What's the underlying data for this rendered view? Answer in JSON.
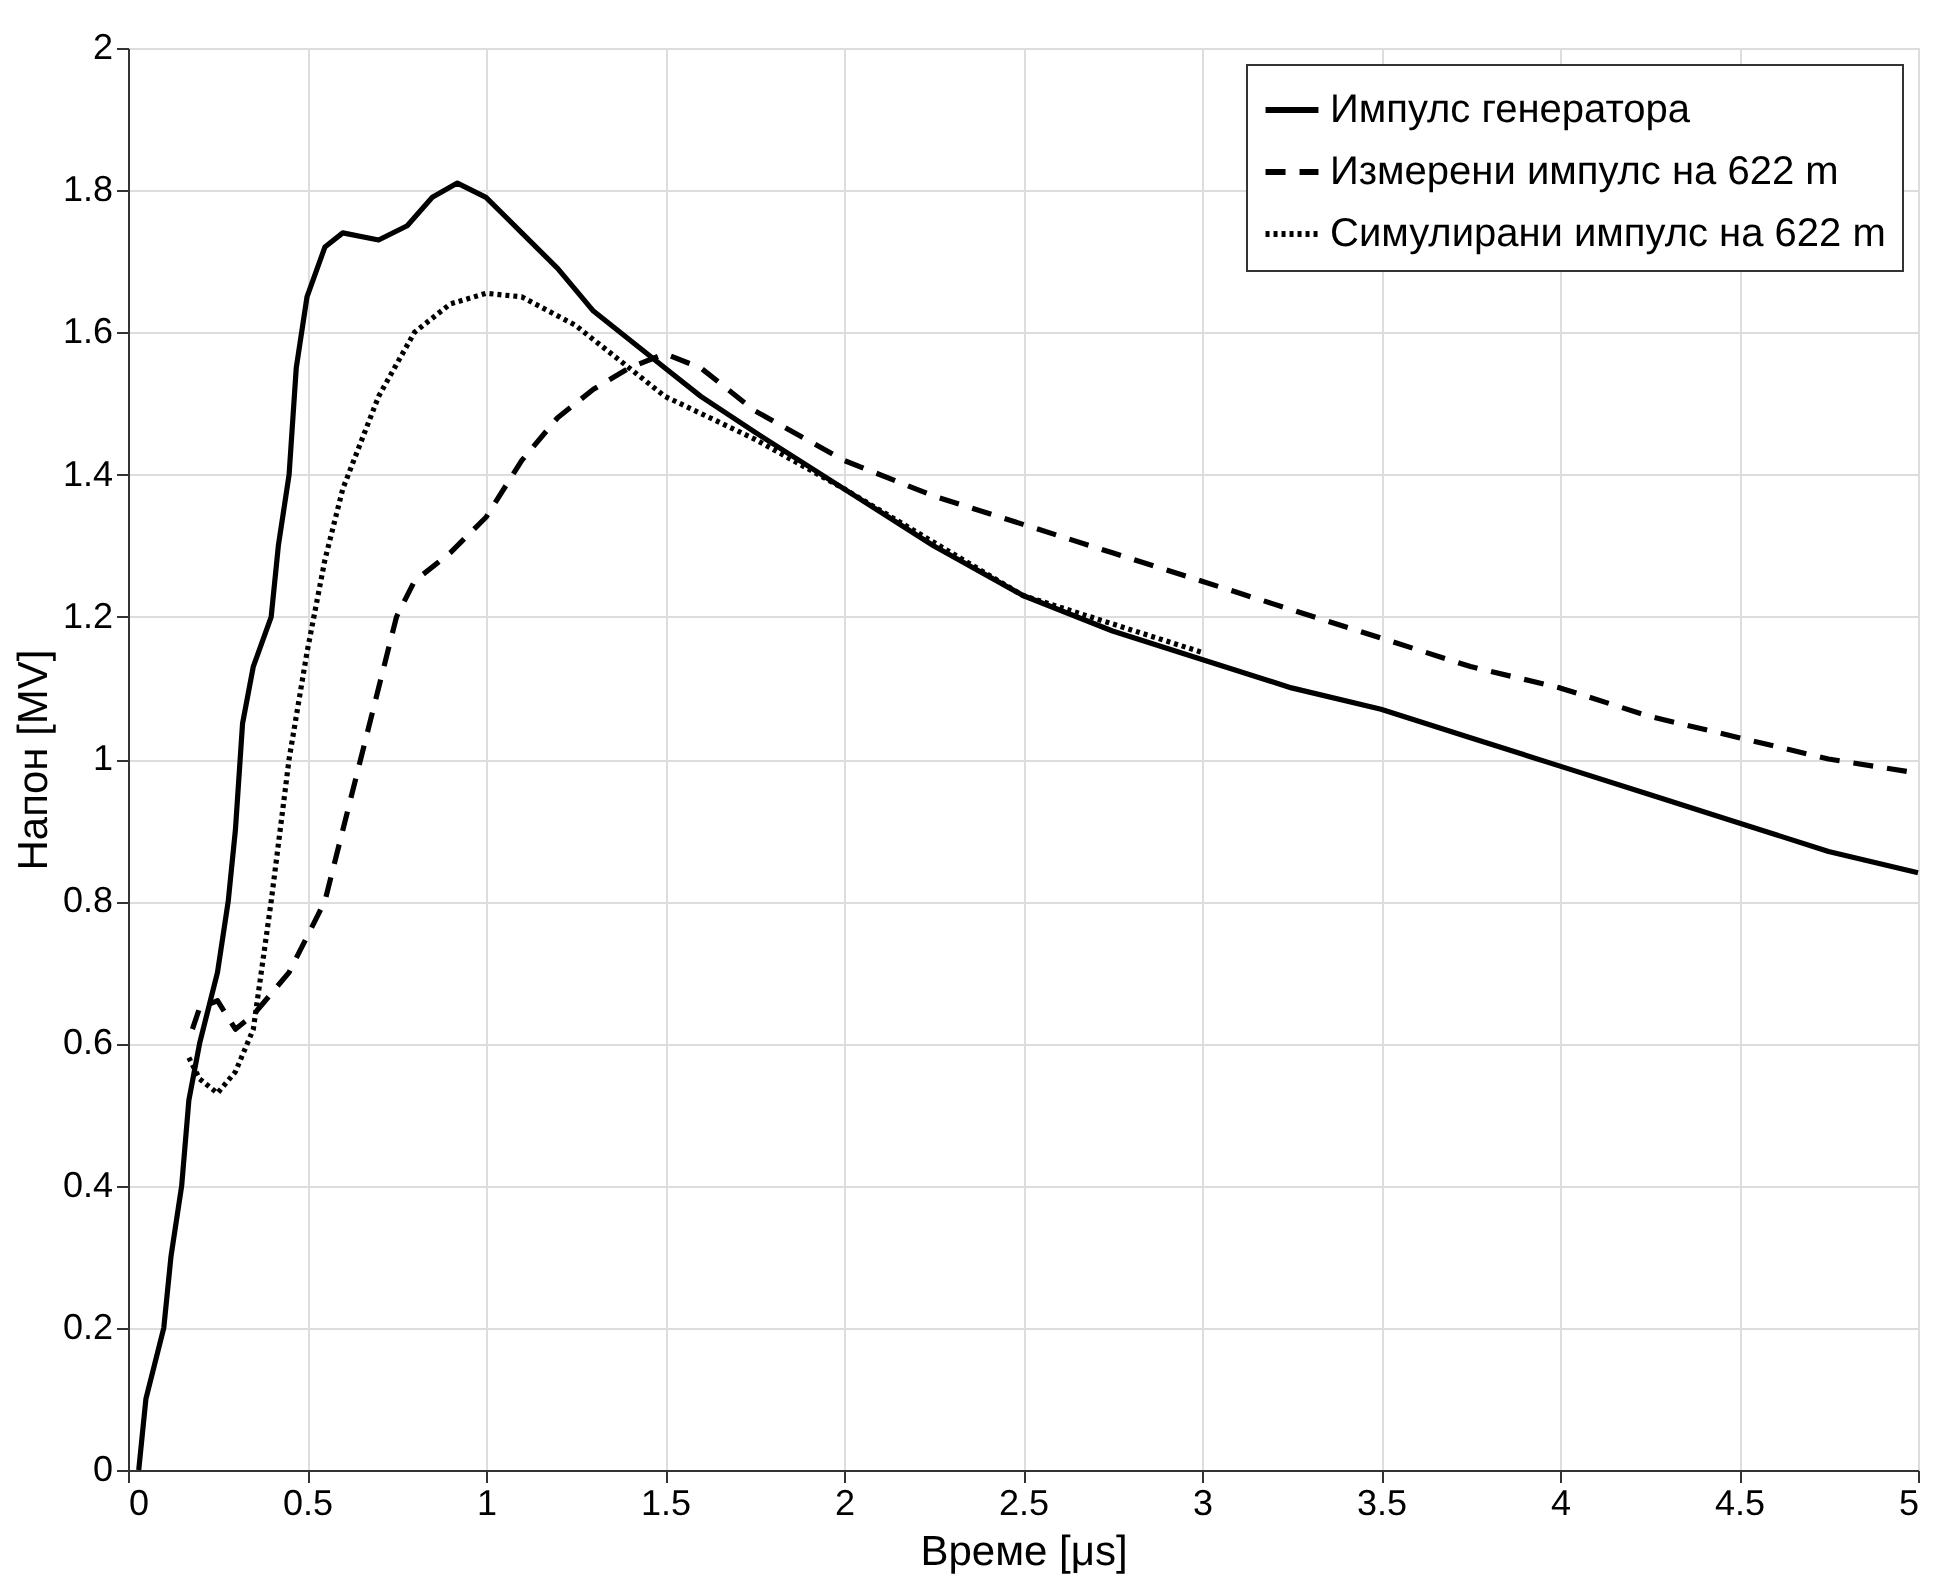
{
  "chart_data": {
    "type": "line",
    "xlabel": "Време [μs]",
    "ylabel": "Напон [MV]",
    "xlim": [
      0,
      5
    ],
    "ylim": [
      0,
      2
    ],
    "xticks": [
      0,
      0.5,
      1,
      1.5,
      2,
      2.5,
      3,
      3.5,
      4,
      4.5,
      5
    ],
    "yticks": [
      0,
      0.2,
      0.4,
      0.6,
      0.8,
      1,
      1.2,
      1.4,
      1.6,
      1.8,
      2
    ],
    "grid": true,
    "legend": "top right",
    "marker": "none",
    "series": [
      {
        "name": "Импулс генератора",
        "color": "#000000",
        "line_style": "solid",
        "x": [
          0.03,
          0.05,
          0.1,
          0.12,
          0.15,
          0.17,
          0.2,
          0.25,
          0.28,
          0.3,
          0.32,
          0.35,
          0.4,
          0.42,
          0.45,
          0.47,
          0.5,
          0.55,
          0.6,
          0.7,
          0.78,
          0.85,
          0.92,
          1.0,
          1.1,
          1.2,
          1.3,
          1.4,
          1.5,
          1.6,
          1.75,
          2.0,
          2.25,
          2.5,
          2.75,
          3.0,
          3.25,
          3.5,
          3.75,
          4.0,
          4.25,
          4.5,
          4.75,
          5.0
        ],
        "values": [
          0,
          0.1,
          0.2,
          0.3,
          0.4,
          0.52,
          0.6,
          0.7,
          0.8,
          0.9,
          1.05,
          1.13,
          1.2,
          1.3,
          1.4,
          1.55,
          1.65,
          1.72,
          1.74,
          1.73,
          1.75,
          1.79,
          1.81,
          1.79,
          1.74,
          1.69,
          1.63,
          1.59,
          1.55,
          1.51,
          1.46,
          1.38,
          1.3,
          1.23,
          1.18,
          1.14,
          1.1,
          1.07,
          1.03,
          0.99,
          0.95,
          0.91,
          0.87,
          0.84
        ]
      },
      {
        "name": "Измерени импулс на 622 m",
        "color": "#000000",
        "line_style": "dashed",
        "x": [
          0.18,
          0.2,
          0.25,
          0.3,
          0.35,
          0.45,
          0.55,
          0.6,
          0.65,
          0.7,
          0.75,
          0.8,
          0.9,
          1.0,
          1.1,
          1.2,
          1.3,
          1.4,
          1.5,
          1.6,
          1.75,
          2.0,
          2.25,
          2.5,
          2.75,
          3.0,
          3.25,
          3.5,
          3.75,
          4.0,
          4.25,
          4.5,
          4.75,
          5.0
        ],
        "values": [
          0.62,
          0.65,
          0.66,
          0.62,
          0.64,
          0.7,
          0.8,
          0.9,
          1.0,
          1.1,
          1.2,
          1.25,
          1.29,
          1.34,
          1.42,
          1.48,
          1.52,
          1.55,
          1.57,
          1.55,
          1.49,
          1.42,
          1.37,
          1.33,
          1.29,
          1.25,
          1.21,
          1.17,
          1.13,
          1.1,
          1.06,
          1.03,
          1.0,
          0.98
        ]
      },
      {
        "name": "Симулирани импулс на 622 m",
        "color": "#000000",
        "line_style": "dotted",
        "x": [
          0.17,
          0.2,
          0.25,
          0.3,
          0.35,
          0.4,
          0.45,
          0.5,
          0.55,
          0.6,
          0.7,
          0.8,
          0.9,
          1.0,
          1.1,
          1.25,
          1.4,
          1.5,
          1.75,
          2.0,
          2.5,
          3.0
        ],
        "values": [
          0.58,
          0.55,
          0.53,
          0.56,
          0.62,
          0.8,
          1.0,
          1.15,
          1.28,
          1.38,
          1.51,
          1.6,
          1.64,
          1.655,
          1.65,
          1.61,
          1.55,
          1.51,
          1.45,
          1.38,
          1.23,
          1.15
        ]
      }
    ]
  }
}
